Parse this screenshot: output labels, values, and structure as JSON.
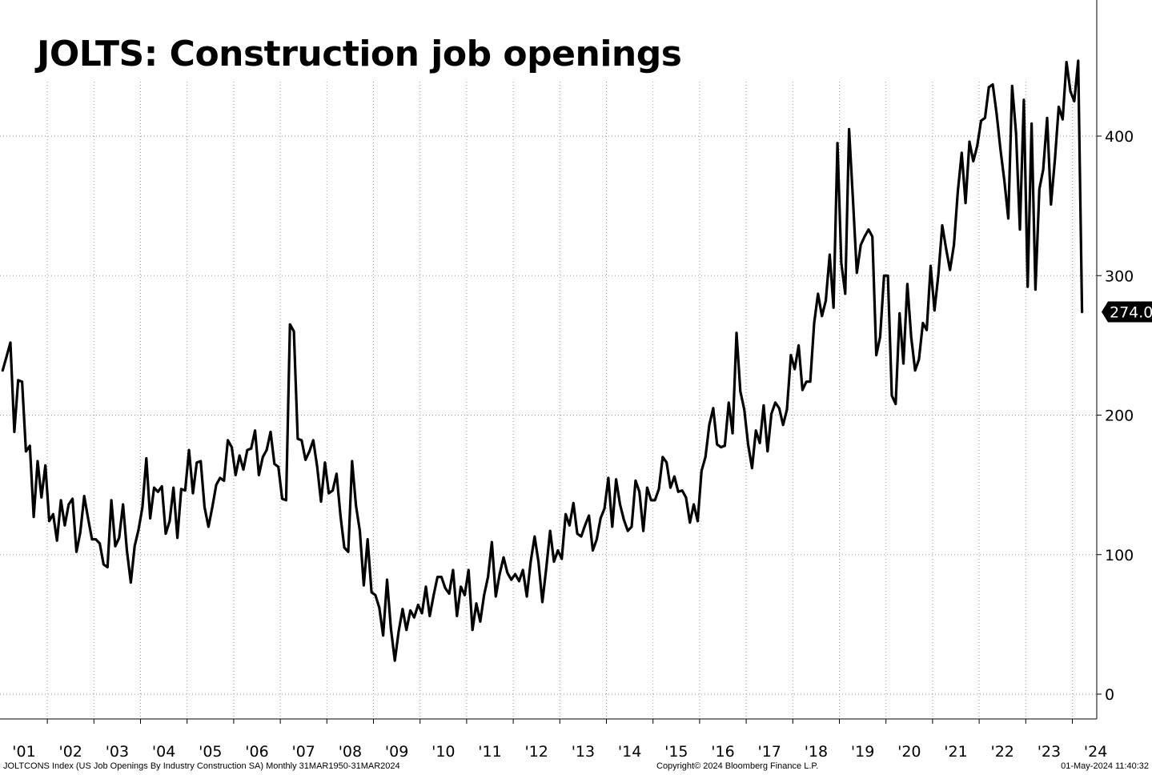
{
  "chart_data": {
    "type": "line",
    "title": "JOLTS: Construction job openings",
    "y_ticks": [
      0,
      100,
      200,
      300,
      400
    ],
    "ylim": [
      -8,
      455
    ],
    "x_tick_labels": [
      "'01",
      "'02",
      "'03",
      "'04",
      "'05",
      "'06",
      "'07",
      "'08",
      "'09",
      "'10",
      "'11",
      "'12",
      "'13",
      "'14",
      "'15",
      "'16",
      "'17",
      "'18",
      "'19",
      "'20",
      "'21",
      "'22",
      "'23",
      "'24"
    ],
    "last_value_label": "274.0",
    "grid": true,
    "line_color": "#000000",
    "series": [
      {
        "values": [
          232,
          242,
          252,
          188,
          225,
          224,
          174,
          178,
          127,
          167,
          141,
          164,
          124,
          129,
          110,
          139,
          121,
          136,
          140,
          102,
          116,
          142,
          126,
          111,
          111,
          108,
          93,
          91,
          139,
          106,
          112,
          136,
          103,
          80,
          106,
          118,
          134,
          169,
          126,
          148,
          145,
          149,
          115,
          124,
          148,
          112,
          147,
          146,
          175,
          144,
          166,
          167,
          134,
          120,
          134,
          150,
          155,
          153,
          182,
          177,
          157,
          171,
          161,
          175,
          176,
          189,
          157,
          170,
          175,
          188,
          165,
          163,
          140,
          139,
          265,
          260,
          183,
          182,
          168,
          174,
          182,
          163,
          138,
          166,
          144,
          146,
          158,
          128,
          105,
          102,
          167,
          135,
          117,
          78,
          111,
          73,
          71,
          62,
          42,
          82,
          47,
          24,
          45,
          61,
          46,
          60,
          55,
          64,
          58,
          77,
          56,
          71,
          84,
          84,
          76,
          72,
          89,
          56,
          77,
          71,
          89,
          46,
          65,
          52,
          71,
          84,
          109,
          70,
          86,
          98,
          87,
          82,
          86,
          81,
          89,
          70,
          95,
          113,
          95,
          66,
          90,
          117,
          95,
          103,
          97,
          129,
          121,
          137,
          115,
          113,
          121,
          128,
          103,
          111,
          126,
          133,
          155,
          120,
          154,
          136,
          125,
          117,
          120,
          153,
          145,
          117,
          148,
          139,
          139,
          147,
          170,
          166,
          148,
          156,
          145,
          146,
          141,
          123,
          136,
          124,
          160,
          170,
          193,
          205,
          179,
          177,
          178,
          209,
          187,
          259,
          217,
          204,
          179,
          162,
          189,
          180,
          207,
          174,
          201,
          209,
          205,
          193,
          204,
          243,
          233,
          250,
          218,
          224,
          224,
          266,
          287,
          271,
          282,
          315,
          277,
          395,
          309,
          287,
          405,
          354,
          302,
          322,
          328,
          333,
          328,
          243,
          256,
          300,
          300,
          214,
          208,
          273,
          237,
          294,
          256,
          232,
          240,
          266,
          261,
          307,
          275,
          301,
          336,
          319,
          304,
          322,
          360,
          388,
          352,
          396,
          382,
          393,
          411,
          413,
          435,
          437,
          416,
          390,
          368,
          341,
          436,
          402,
          333,
          426,
          292,
          409,
          290,
          362,
          376,
          413,
          351,
          383,
          421,
          412,
          453,
          432,
          425,
          454,
          274
        ]
      }
    ]
  },
  "footer": {
    "left": "JOLTCONS Index (US Job Openings By Industry Construction SA)  Monthly 31MAR1950-31MAR2024",
    "center": "Copyright© 2024 Bloomberg Finance L.P.",
    "right": "01-May-2024 11:40:32"
  }
}
